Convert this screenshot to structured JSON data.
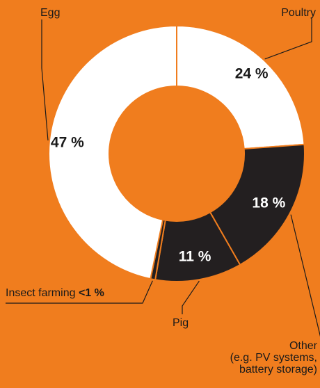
{
  "chart_data": {
    "type": "pie",
    "style": "donut",
    "slices": [
      {
        "label": "Poultry",
        "value": 24,
        "value_label": "24 %",
        "color": "#FFFFFF",
        "text_color": "#1a1a1a"
      },
      {
        "label": "Other (e.g. PV systems, battery storage)",
        "value": 18,
        "value_label": "18 %",
        "color": "#231F20",
        "text_color": "#FFFFFF"
      },
      {
        "label": "Pig",
        "value": 11,
        "value_label": "11 %",
        "color": "#231F20",
        "text_color": "#FFFFFF"
      },
      {
        "label": "Insect farming",
        "value": 0.6,
        "value_label": "<1 %",
        "color": "#231F20",
        "text_color": "#1a1a1a"
      },
      {
        "label": "Egg",
        "value": 47,
        "value_label": "47 %",
        "color": "#FFFFFF",
        "text_color": "#1a1a1a"
      }
    ],
    "background_color": "#F07D1E",
    "separator_color": "#F07D1E"
  },
  "labels": {
    "egg": "Egg",
    "poultry": "Poultry",
    "other_line1": "Other",
    "other_line2": "(e.g. PV systems,",
    "other_line3": "battery storage)",
    "pig": "Pig",
    "insect_name": "Insect farming",
    "insect_value": "<1 %"
  }
}
